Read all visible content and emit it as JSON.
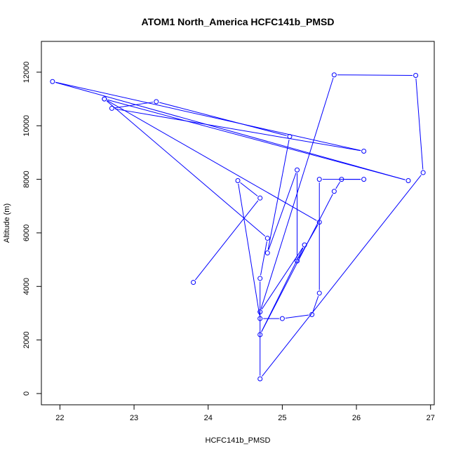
{
  "chart_data": {
    "type": "line",
    "title": "ATOM1 North_America HCFC141b_PMSD",
    "xlabel": "HCFC141b_PMSD",
    "ylabel": "Altitude (m)",
    "xlim": [
      21.75,
      27.05
    ],
    "ylim": [
      -420,
      13150
    ],
    "x_ticks": [
      "22",
      "23",
      "24",
      "25",
      "26",
      "27"
    ],
    "y_ticks": [
      "0",
      "2000",
      "4000",
      "6000",
      "8000",
      "10000",
      "12000"
    ],
    "grid": false,
    "series_color": "#0000ff",
    "points": [
      {
        "x": 23.8,
        "y": 4150
      },
      {
        "x": 24.7,
        "y": 7300
      },
      {
        "x": 24.4,
        "y": 7950
      },
      {
        "x": 24.7,
        "y": 2800
      },
      {
        "x": 25.0,
        "y": 2800
      },
      {
        "x": 25.4,
        "y": 2950
      },
      {
        "x": 25.5,
        "y": 3750
      },
      {
        "x": 25.5,
        "y": 8000
      },
      {
        "x": 26.1,
        "y": 8000
      },
      {
        "x": 25.8,
        "y": 8000
      },
      {
        "x": 25.7,
        "y": 7550
      },
      {
        "x": 24.7,
        "y": 2200
      },
      {
        "x": 25.3,
        "y": 5550
      },
      {
        "x": 24.7,
        "y": 3050
      },
      {
        "x": 25.7,
        "y": 11900
      },
      {
        "x": 26.8,
        "y": 11880
      },
      {
        "x": 26.9,
        "y": 8250
      },
      {
        "x": 24.7,
        "y": 550
      },
      {
        "x": 24.7,
        "y": 4300
      },
      {
        "x": 24.8,
        "y": 5800
      },
      {
        "x": 22.6,
        "y": 11000
      },
      {
        "x": 26.7,
        "y": 7950
      },
      {
        "x": 21.9,
        "y": 11650
      },
      {
        "x": 26.1,
        "y": 9050
      },
      {
        "x": 22.7,
        "y": 10650
      },
      {
        "x": 23.3,
        "y": 10900
      },
      {
        "x": 25.1,
        "y": 9600
      },
      {
        "x": 24.8,
        "y": 5250
      },
      {
        "x": 25.2,
        "y": 8350
      },
      {
        "x": 25.2,
        "y": 4950
      },
      {
        "x": 25.5,
        "y": 6400
      },
      {
        "x": 22.6,
        "y": 11000
      }
    ]
  }
}
